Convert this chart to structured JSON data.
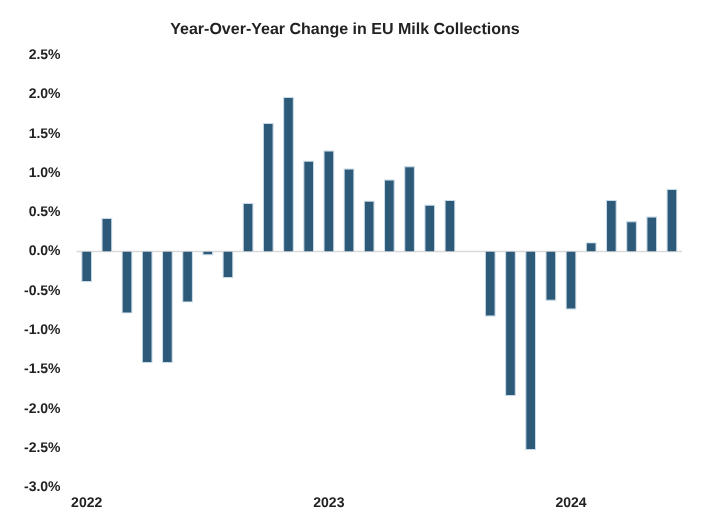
{
  "chart_data": {
    "type": "bar",
    "title": "Year-Over-Year Change in EU Milk Collections",
    "categories": [
      "2022",
      null,
      null,
      null,
      null,
      null,
      null,
      null,
      null,
      null,
      null,
      null,
      "2023",
      null,
      null,
      null,
      null,
      null,
      null,
      null,
      null,
      null,
      null,
      null,
      "2024",
      null,
      null,
      null,
      null,
      null
    ],
    "series": [
      {
        "color": "#2e5a7a",
        "values": [
          -0.39,
          0.43,
          -0.79,
          -1.42,
          -1.42,
          -0.65,
          -0.05,
          -0.34,
          0.62,
          1.64,
          1.97,
          1.16,
          1.29,
          1.06,
          0.65,
          0.92,
          1.09,
          0.6,
          0.66,
          null,
          -0.83,
          -1.84,
          -2.53,
          -0.63,
          -0.74,
          0.12,
          0.66,
          0.39,
          0.45,
          0.8
        ]
      }
    ],
    "ylim": [
      -3,
      2.5
    ],
    "yticks": [
      {
        "value": -3,
        "label": "-3.0%"
      },
      {
        "value": -2.5,
        "label": "-2.5%"
      },
      {
        "value": -2,
        "label": "-2.0%"
      },
      {
        "value": -1.5,
        "label": "-1.5%"
      },
      {
        "value": -1,
        "label": "-1.0%"
      },
      {
        "value": -0.5,
        "label": "-0.5%"
      },
      {
        "value": 0,
        "label": "0.0%"
      },
      {
        "value": 0.5,
        "label": "0.5%"
      },
      {
        "value": 1,
        "label": "1.0%"
      },
      {
        "value": 1.5,
        "label": "1.5%"
      },
      {
        "value": 2,
        "label": "2.0%"
      },
      {
        "value": 2.5,
        "label": "2.5%"
      }
    ],
    "ref_lines": [
      {
        "axis": "y",
        "value": 0,
        "color": "#d9d9d9"
      }
    ],
    "grid": false,
    "legend": false
  }
}
